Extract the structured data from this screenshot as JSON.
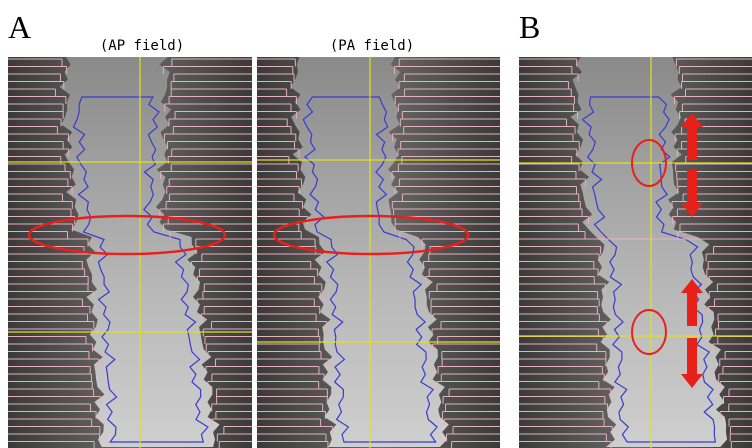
{
  "panels": [
    {
      "label": "A",
      "captions": [
        "(AP field)",
        "(PA field)"
      ]
    },
    {
      "label": "B"
    }
  ]
}
